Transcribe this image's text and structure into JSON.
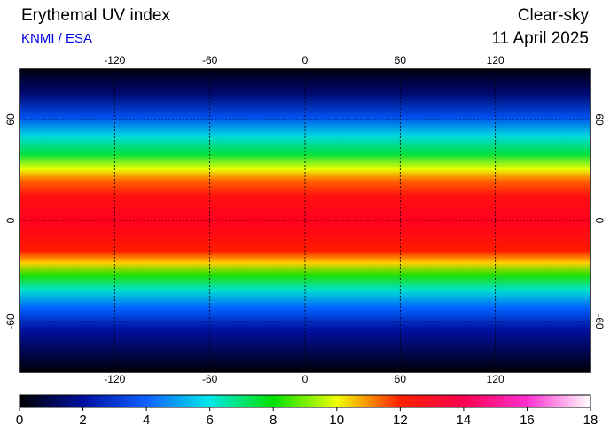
{
  "header": {
    "title": "Erythemal UV index",
    "source": "KNMI / ESA",
    "condition": "Clear-sky",
    "date": "11 April 2025"
  },
  "map": {
    "xlim": [
      -180,
      180
    ],
    "ylim": [
      -90,
      90
    ],
    "xticks": [
      -120,
      -60,
      0,
      60,
      120
    ],
    "yticks": [
      60,
      0,
      -60
    ],
    "grid": true
  },
  "colorbar": {
    "lim": [
      0,
      18
    ],
    "ticks": [
      0,
      2,
      4,
      6,
      8,
      10,
      12,
      14,
      16,
      18
    ],
    "colors": [
      "#000000",
      "#0010a0",
      "#1060ff",
      "#00e8e8",
      "#00e000",
      "#f0ff00",
      "#ff2000",
      "#ff0050",
      "#ff30d0",
      "#ffffff"
    ]
  }
}
